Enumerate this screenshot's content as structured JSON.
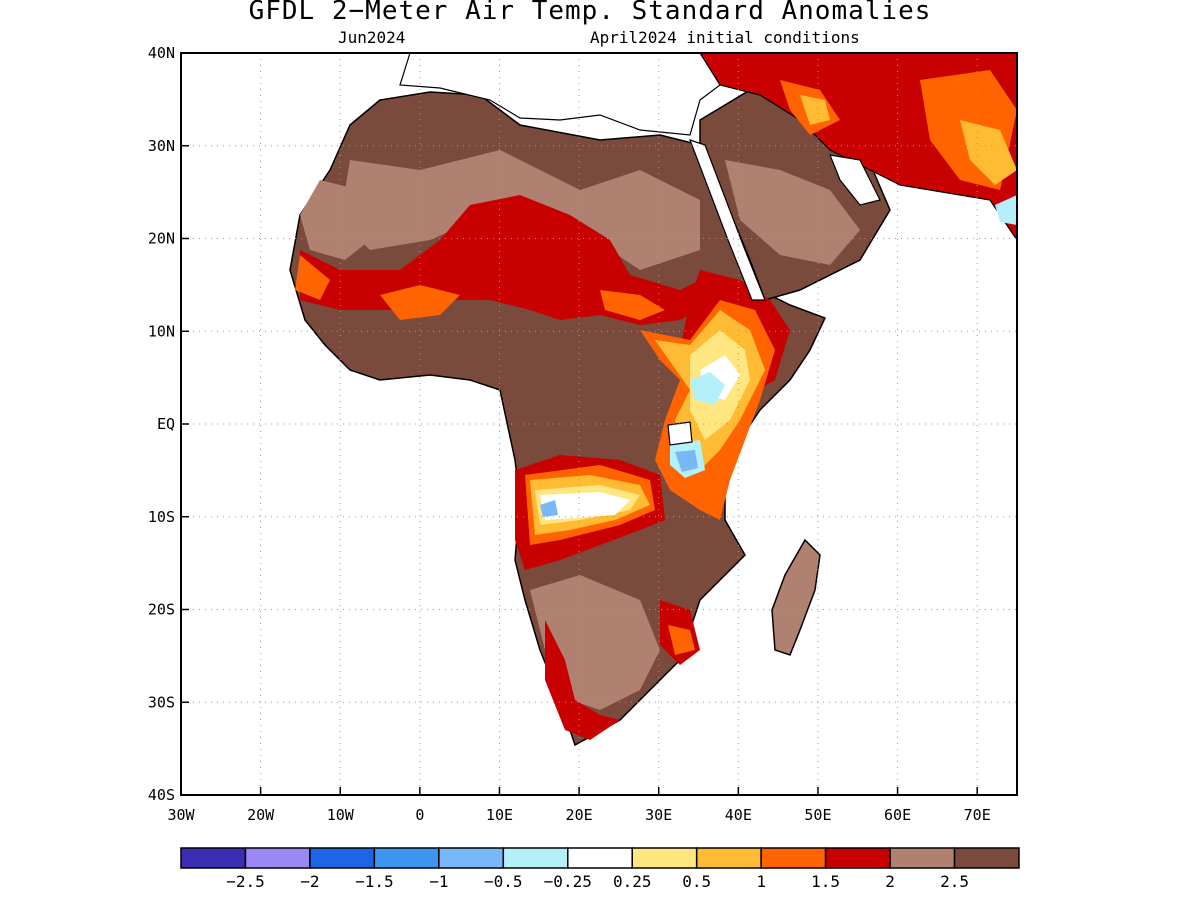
{
  "title": "GFDL 2−Meter Air Temp. Standard Anomalies",
  "subtitle_left": "Jun2024",
  "subtitle_right": "April2024 initial conditions",
  "map": {
    "lon_range": [
      -30,
      75
    ],
    "lat_range": [
      -40,
      40
    ],
    "x_ticks": [
      {
        "value": -30,
        "label": "30W"
      },
      {
        "value": -20,
        "label": "20W"
      },
      {
        "value": -10,
        "label": "10W"
      },
      {
        "value": 0,
        "label": "0"
      },
      {
        "value": 10,
        "label": "10E"
      },
      {
        "value": 20,
        "label": "20E"
      },
      {
        "value": 30,
        "label": "30E"
      },
      {
        "value": 40,
        "label": "40E"
      },
      {
        "value": 50,
        "label": "50E"
      },
      {
        "value": 60,
        "label": "60E"
      },
      {
        "value": 70,
        "label": "70E"
      }
    ],
    "y_ticks": [
      {
        "value": 40,
        "label": "40N"
      },
      {
        "value": 30,
        "label": "30N"
      },
      {
        "value": 20,
        "label": "20N"
      },
      {
        "value": 10,
        "label": "10N"
      },
      {
        "value": 0,
        "label": "EQ"
      },
      {
        "value": -10,
        "label": "10S"
      },
      {
        "value": -20,
        "label": "20S"
      },
      {
        "value": -30,
        "label": "30S"
      },
      {
        "value": -40,
        "label": "40S"
      }
    ],
    "grid": "dotted",
    "colors": {
      "lt_-2.5": "#3b2db4",
      "-2.5_-2": "#9b88f5",
      "-2_-1.5": "#1e64e6",
      "-1.5_-1": "#3c96f0",
      "-1_-0.5": "#78b8f8",
      "-0.5_-0.25": "#b4f0fa",
      "-0.25_0.25": "#ffffff",
      "0.25_0.5": "#ffe680",
      "0.5_1": "#ffbb33",
      "1_1.5": "#ff6400",
      "1.5_2": "#c80000",
      "2_2.5": "#b08070",
      "gt_2.5": "#7a4a3c"
    }
  },
  "colorbar": {
    "colors": [
      "#3b2db4",
      "#9b88f5",
      "#1e64e6",
      "#3c96f0",
      "#78b8f8",
      "#b4f0fa",
      "#ffffff",
      "#ffe680",
      "#ffbb33",
      "#ff6400",
      "#c80000",
      "#b08070",
      "#7a4a3c"
    ],
    "labels": [
      "−2.5",
      "−2",
      "−1.5",
      "−1",
      "−0.5",
      "−0.25",
      "0.25",
      "0.5",
      "1",
      "1.5",
      "2",
      "2.5"
    ]
  }
}
